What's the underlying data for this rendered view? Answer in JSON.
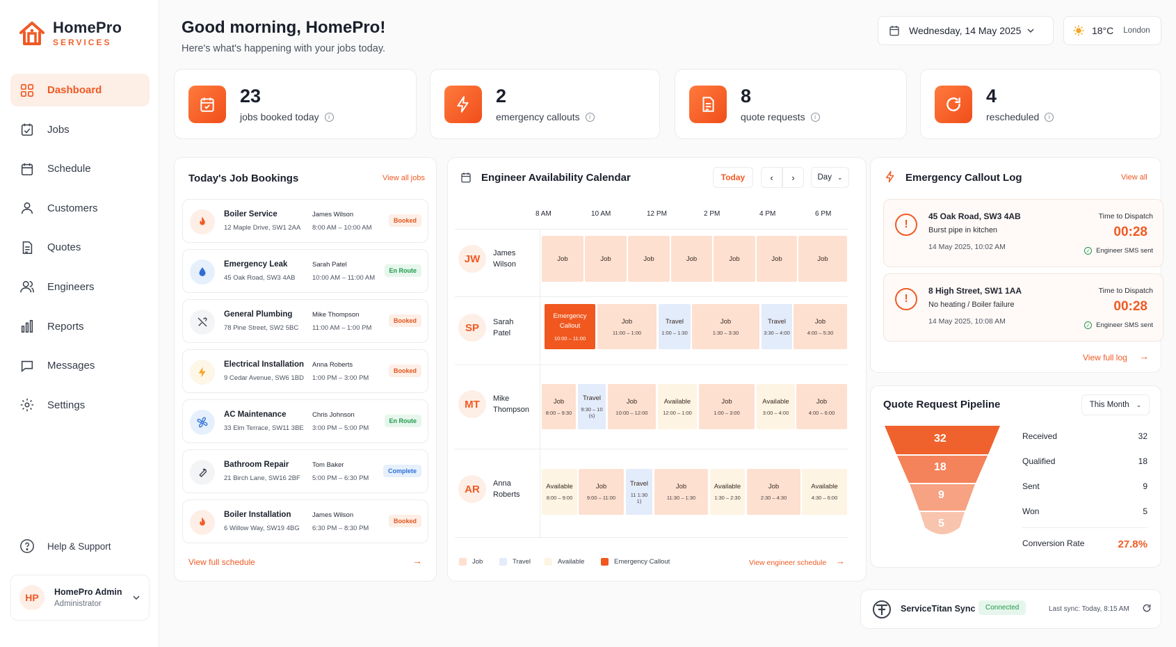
{
  "brand": {
    "name": "HomePro",
    "sub": "SERVICES"
  },
  "nav": [
    {
      "label": "Dashboard",
      "icon": "dashboard-icon",
      "active": true
    },
    {
      "label": "Jobs",
      "icon": "jobs-icon"
    },
    {
      "label": "Schedule",
      "icon": "calendar-icon"
    },
    {
      "label": "Customers",
      "icon": "user-icon"
    },
    {
      "label": "Quotes",
      "icon": "document-icon"
    },
    {
      "label": "Engineers",
      "icon": "users-icon"
    },
    {
      "label": "Reports",
      "icon": "bar-chart-icon"
    },
    {
      "label": "Messages",
      "icon": "message-icon"
    },
    {
      "label": "Settings",
      "icon": "gear-icon"
    }
  ],
  "help": "Help & Support",
  "user": {
    "initials": "HP",
    "name": "HomePro Admin",
    "role": "Administrator"
  },
  "header": {
    "greeting": "Good morning, HomePro!",
    "sub": "Here's what's happening with your jobs today.",
    "date": "Wednesday, 14 May 2025",
    "temp": "18°C",
    "city": "London"
  },
  "stats": [
    {
      "value": "23",
      "label": "jobs booked today",
      "icon": "calendar-check-icon"
    },
    {
      "value": "2",
      "label": "emergency callouts",
      "icon": "lightning-icon"
    },
    {
      "value": "8",
      "label": "quote requests",
      "icon": "document-icon"
    },
    {
      "value": "4",
      "label": "rescheduled",
      "icon": "refresh-icon"
    }
  ],
  "bookings": {
    "title": "Today's Job Bookings",
    "view_all": "View all jobs",
    "footer": "View full schedule",
    "items": [
      {
        "title": "Boiler Service",
        "addr": "12 Maple Drive, SW1 2AA",
        "eng": "James Wilson",
        "time": "8:00 AM – 10:00 AM",
        "status": "Booked",
        "icon": "flame-icon"
      },
      {
        "title": "Emergency Leak",
        "addr": "45 Oak Road, SW3 4AB",
        "eng": "Sarah Patel",
        "time": "10:00 AM – 11:00 AM",
        "status": "En Route",
        "icon": "water-drop-icon"
      },
      {
        "title": "General Plumbing",
        "addr": "78 Pine Street, SW2 5BC",
        "eng": "Mike Thompson",
        "time": "11:00 AM – 1:00 PM",
        "status": "Booked",
        "icon": "tools-icon"
      },
      {
        "title": "Electrical Installation",
        "addr": "9 Cedar Avenue, SW6 1BD",
        "eng": "Anna Roberts",
        "time": "1:00 PM – 3:00 PM",
        "status": "Booked",
        "icon": "lightning-icon"
      },
      {
        "title": "AC Maintenance",
        "addr": "33 Elm Terrace, SW11 3BE",
        "eng": "Chris Johnson",
        "time": "3:00 PM – 5:00 PM",
        "status": "En Route",
        "icon": "fan-icon"
      },
      {
        "title": "Bathroom Repair",
        "addr": "21 Birch Lane, SW16 2BF",
        "eng": "Tom Baker",
        "time": "5:00 PM – 6:30 PM",
        "status": "Complete",
        "icon": "wrench-icon"
      },
      {
        "title": "Boiler Installation",
        "addr": "6 Willow Way, SW19 4BG",
        "eng": "James Wilson",
        "time": "6:30 PM – 8:30 PM",
        "status": "Booked",
        "icon": "flame-icon"
      }
    ]
  },
  "calendar": {
    "title": "Engineer Availability Calendar",
    "today": "Today",
    "view": "Day",
    "hours": [
      "8 AM",
      "10 AM",
      "12 PM",
      "2 PM",
      "4 PM",
      "6 PM"
    ],
    "engineers": [
      {
        "initials": "JW",
        "first": "James",
        "last": "Wilson"
      },
      {
        "initials": "SP",
        "first": "Sarah",
        "last": "Patel"
      },
      {
        "initials": "MT",
        "first": "Mike",
        "last": "Thompson"
      },
      {
        "initials": "AR",
        "first": "Anna",
        "last": "Roberts"
      }
    ],
    "legend": {
      "job": "Job",
      "travel": "Travel",
      "available": "Available",
      "emergency": "Emergency Callout"
    },
    "footer": "View engineer schedule"
  },
  "emergency": {
    "title": "Emergency Callout Log",
    "view_all": "View all",
    "footer": "View full log",
    "items": [
      {
        "addr": "45 Oak Road, SW3 4AB",
        "desc": "Burst pipe in kitchen",
        "time": "14 May 2025, 10:02 AM",
        "ttd_label": "Time to Dispatch",
        "countdown": "00:28",
        "sms": "Engineer SMS sent"
      },
      {
        "addr": "8 High Street, SW1 1AA",
        "desc": "No heating / Boiler failure",
        "time": "14 May 2025, 10:08 AM",
        "ttd_label": "Time to Dispatch",
        "countdown": "00:28",
        "sms": "Engineer SMS sent"
      }
    ]
  },
  "pipeline": {
    "title": "Quote Request Pipeline",
    "period": "This Month",
    "stages": [
      {
        "label": "Received",
        "value": "32"
      },
      {
        "label": "Qualified",
        "value": "18"
      },
      {
        "label": "Sent",
        "value": "9"
      },
      {
        "label": "Won",
        "value": "5"
      }
    ],
    "conv_label": "Conversion Rate",
    "conv_value": "27.8%"
  },
  "sync": {
    "name": "ServiceTitan Sync",
    "status": "Connected",
    "last": "Last sync: Today, 8:15 AM"
  },
  "colors": {
    "accent": "#ef5a24",
    "job": "#fde0d0",
    "travel": "#e3ecfb",
    "available": "#fdf4e3",
    "emergency": "#f0581f"
  }
}
